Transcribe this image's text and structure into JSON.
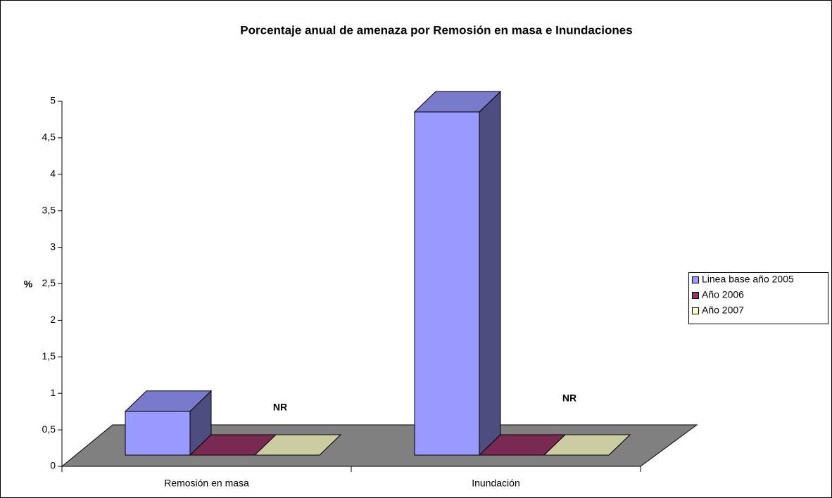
{
  "chart_data": {
    "type": "bar3d",
    "title": "Porcentaje anual de amenaza por Remosión en masa e Inundaciones",
    "y_label": "%",
    "categories": [
      "Remosión en masa",
      "Inundación"
    ],
    "series": [
      {
        "name": "Linea base año 2005",
        "color": "#9999ff",
        "values": [
          0.6,
          4.7
        ]
      },
      {
        "name": "Año 2006",
        "color": "#993366",
        "values": [
          0,
          0
        ]
      },
      {
        "name": "Año 2007",
        "color": "#ffffcc",
        "values": [
          0,
          0
        ]
      }
    ],
    "annotations": [
      "NR",
      "NR"
    ],
    "ylim": [
      0,
      5
    ],
    "yticks": [
      0,
      {
        "value": 0.5,
        "label": "0,5"
      },
      1,
      {
        "value": 1.5,
        "label": "1,5"
      },
      2,
      {
        "value": 2.5,
        "label": "2,5"
      },
      3,
      {
        "value": 3.5,
        "label": "3,5"
      },
      4,
      {
        "value": 4.5,
        "label": "4,5"
      },
      5
    ],
    "floor_color": "#808080",
    "legend": "right"
  }
}
